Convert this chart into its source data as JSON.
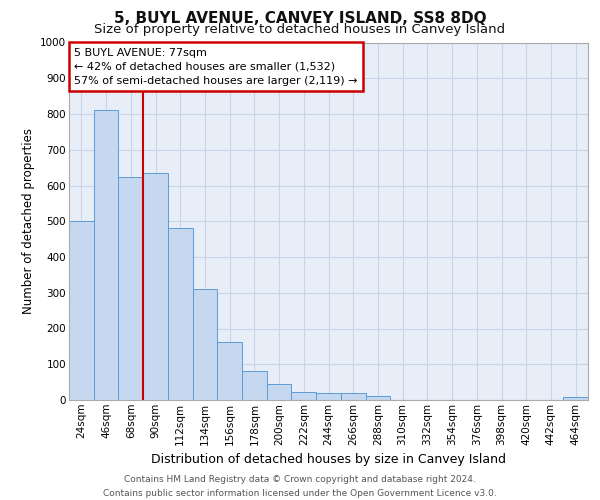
{
  "title": "5, BUYL AVENUE, CANVEY ISLAND, SS8 8DQ",
  "subtitle": "Size of property relative to detached houses in Canvey Island",
  "xlabel": "Distribution of detached houses by size in Canvey Island",
  "ylabel": "Number of detached properties",
  "categories": [
    "24sqm",
    "46sqm",
    "68sqm",
    "90sqm",
    "112sqm",
    "134sqm",
    "156sqm",
    "178sqm",
    "200sqm",
    "222sqm",
    "244sqm",
    "266sqm",
    "288sqm",
    "310sqm",
    "332sqm",
    "354sqm",
    "376sqm",
    "398sqm",
    "420sqm",
    "442sqm",
    "464sqm"
  ],
  "values": [
    500,
    810,
    625,
    635,
    480,
    310,
    162,
    80,
    45,
    23,
    20,
    20,
    12,
    0,
    0,
    0,
    0,
    0,
    0,
    0,
    8
  ],
  "bar_color": "#c5d8f0",
  "bar_edgecolor": "#5b9bd5",
  "annotation_text": "5 BUYL AVENUE: 77sqm\n← 42% of detached houses are smaller (1,532)\n57% of semi-detached houses are larger (2,119) →",
  "annotation_box_color": "#ffffff",
  "annotation_box_edgecolor": "#cc0000",
  "vline_color": "#cc0000",
  "vline_x_index": 2,
  "ylim": [
    0,
    1000
  ],
  "yticks": [
    0,
    100,
    200,
    300,
    400,
    500,
    600,
    700,
    800,
    900,
    1000
  ],
  "grid_color": "#c8d4e8",
  "background_color": "#e8eef8",
  "footer_text": "Contains HM Land Registry data © Crown copyright and database right 2024.\nContains public sector information licensed under the Open Government Licence v3.0.",
  "title_fontsize": 11,
  "subtitle_fontsize": 9.5,
  "xlabel_fontsize": 9,
  "ylabel_fontsize": 8.5,
  "tick_fontsize": 7.5,
  "annotation_fontsize": 8,
  "footer_fontsize": 6.5
}
